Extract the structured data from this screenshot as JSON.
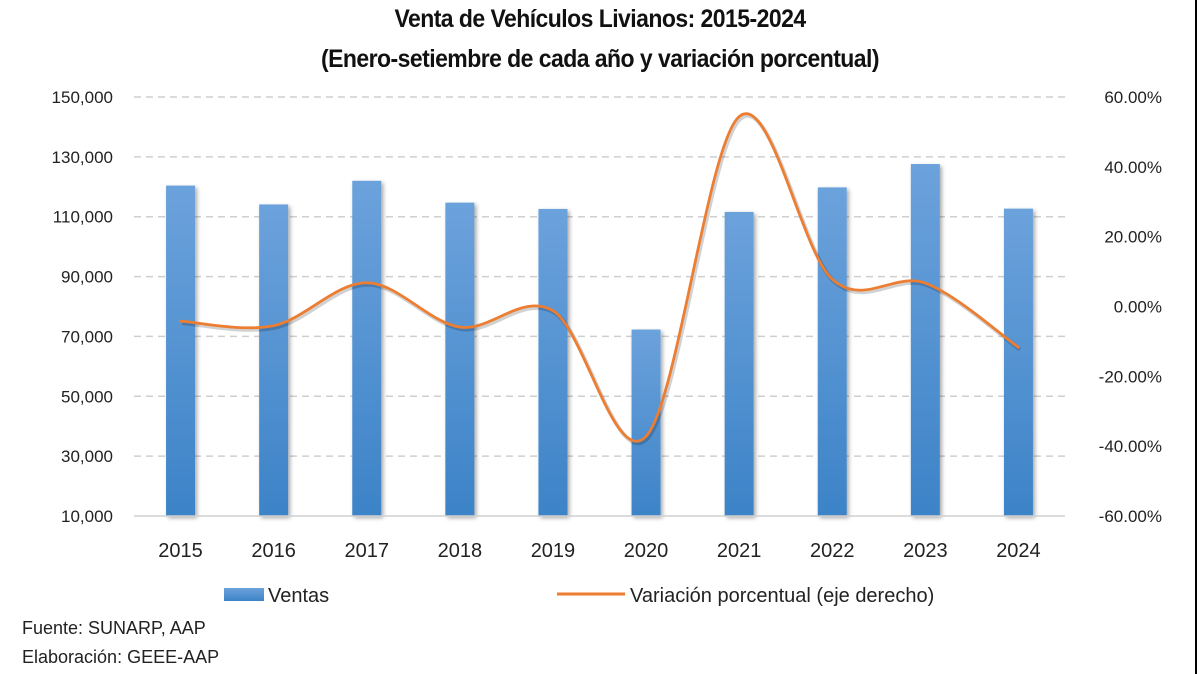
{
  "chart_data": {
    "type": "bar",
    "title": "Venta de Vehículos Livianos: 2015-2024",
    "subtitle": "(Enero-setiembre de cada año y variación porcentual)",
    "categories": [
      "2015",
      "2016",
      "2017",
      "2018",
      "2019",
      "2020",
      "2021",
      "2022",
      "2023",
      "2024"
    ],
    "series": [
      {
        "name": "Ventas",
        "type": "bar",
        "axis": "left",
        "color": "#5B9BD5",
        "values": [
          120400,
          114100,
          122000,
          114700,
          112600,
          72300,
          111600,
          119800,
          127600,
          112700
        ]
      },
      {
        "name": "Variación porcentual (eje derecho)",
        "type": "line",
        "smooth": true,
        "axis": "right",
        "color": "#ED7D31",
        "values": [
          -4.2,
          -5.5,
          6.8,
          -5.9,
          -1.2,
          -37.2,
          54.4,
          7.8,
          6.7,
          -11.7
        ]
      }
    ],
    "y_left": {
      "ylim": [
        10000,
        150000
      ],
      "ticks": [
        10000,
        30000,
        50000,
        70000,
        90000,
        110000,
        130000,
        150000
      ],
      "tick_labels": [
        "10,000",
        "30,000",
        "50,000",
        "70,000",
        "90,000",
        "110,000",
        "130,000",
        "150,000"
      ]
    },
    "y_right": {
      "ylim": [
        -60,
        60
      ],
      "ticks": [
        -60,
        -40,
        -20,
        0,
        20,
        40,
        60
      ],
      "tick_labels": [
        "-60.00%",
        "-40.00%",
        "-20.00%",
        "0.00%",
        "20.00%",
        "40.00%",
        "60.00%"
      ]
    },
    "xlabel": "",
    "ylabel": "",
    "grid": "horizontal dashed",
    "legend": {
      "position": "bottom",
      "entries": [
        "Ventas",
        "Variación porcentual (eje derecho)"
      ]
    }
  },
  "footnotes": {
    "source": "Fuente: SUNARP, AAP",
    "elaboration": "Elaboración: GEEE-AAP"
  }
}
